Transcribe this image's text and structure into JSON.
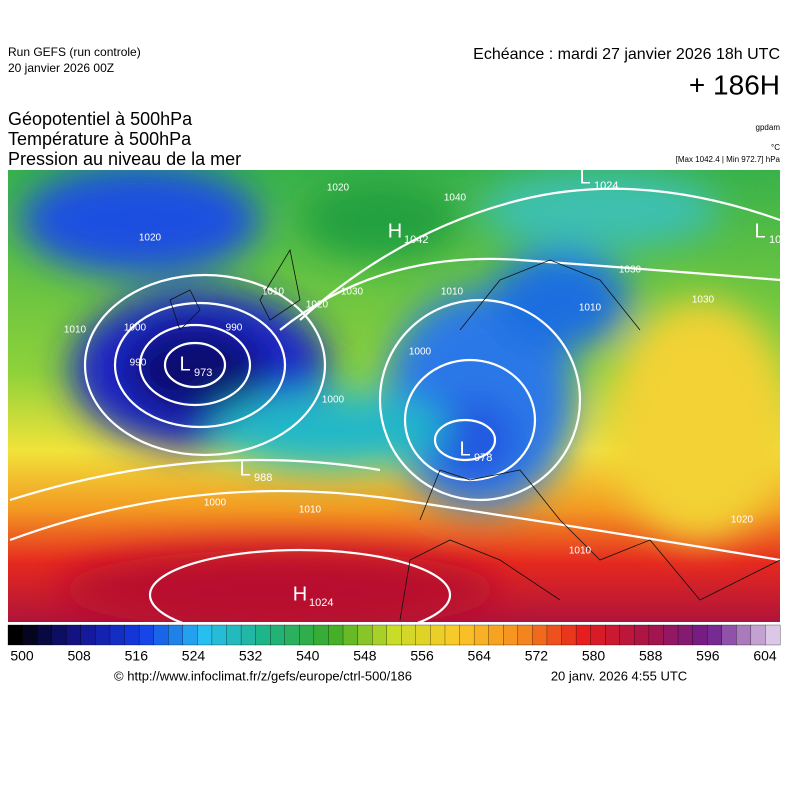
{
  "header": {
    "run": "Run GEFS (run controle)",
    "run_date": "20 janvier 2026 00Z",
    "valid": "Echéance : mardi 27 janvier 2026 18h UTC",
    "lead": "+ 186H",
    "fields": [
      "Géopotentiel à 500hPa",
      "Température à 500hPa",
      "Pression au niveau de la mer"
    ],
    "unit_geo": "gpdam",
    "unit_temp": "°C",
    "extremes": "[Max 1042.4 | Min 972.7] hPa"
  },
  "centers": [
    {
      "letter": "L",
      "pressure": 973
    },
    {
      "letter": "L",
      "pressure": 988
    },
    {
      "letter": "L",
      "pressure": 978
    },
    {
      "letter": "H",
      "pressure": 1024
    },
    {
      "letter": "H",
      "pressure": 1042
    },
    {
      "letter": "L",
      "pressure": 1024
    },
    {
      "letter": "L",
      "pressure": 10
    }
  ],
  "isobar_labels": [
    1020,
    1020,
    1040,
    1030,
    1020,
    1010,
    1010,
    1000,
    990,
    990,
    1010,
    1000,
    1000,
    1000,
    1010,
    1010,
    1030,
    1030,
    1020,
    1010
  ],
  "colorbar": {
    "ticks": [
      500,
      508,
      516,
      524,
      532,
      540,
      548,
      556,
      564,
      572,
      580,
      588,
      596,
      604
    ]
  },
  "footer": {
    "source": "© http://www.infoclimat.fr/z/gefs/europe/ctrl-500/186",
    "generated": "20 janv. 2026  4:55 UTC"
  }
}
